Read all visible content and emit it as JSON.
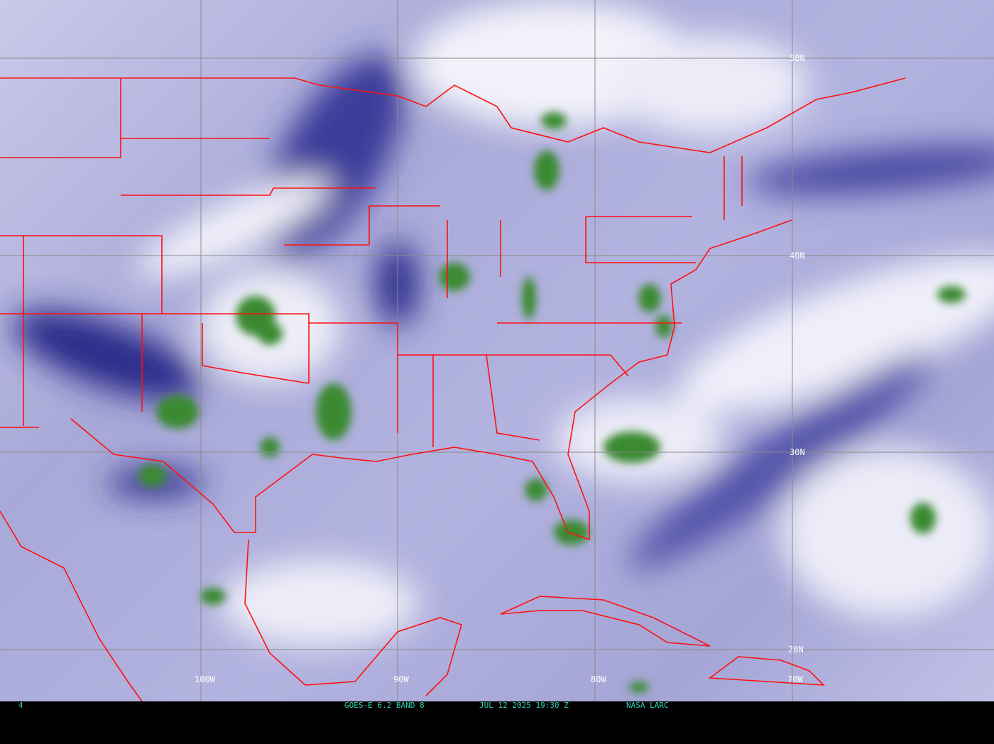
{
  "image": {
    "satellite_product": "GOES-E 6.2 BAND 8",
    "datetime": "JUL 12 2025 19:30 Z",
    "source": "NASA LARC",
    "frame_marker": "4"
  },
  "grid": {
    "latitude_labels": [
      "50N",
      "40N",
      "30N",
      "20N"
    ],
    "longitude_labels": [
      "100W",
      "90W",
      "80W",
      "70W"
    ]
  },
  "colors": {
    "background_vapor": "#a9a9d8",
    "dry_dark": "#2a2a8a",
    "moist_white": "#f2f2fa",
    "cold_cloud_green": "#3a8a30",
    "borders": "#ff1010",
    "grid": "#8a8a8a",
    "caption_text": "#2fd0b0"
  }
}
